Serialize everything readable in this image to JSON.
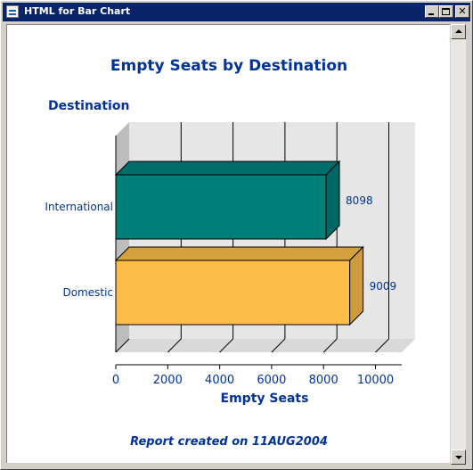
{
  "window": {
    "title": "HTML for Bar Chart",
    "minimize_icon": "minimize-icon",
    "maximize_icon": "maximize-icon",
    "close_glyph": "✕"
  },
  "page": {
    "chart_title": "Empty Seats by Destination",
    "category_axis_label": "Destination",
    "value_axis_label": "Empty Seats",
    "footnote": "Report created on 11AUG2004"
  },
  "chart_data": {
    "type": "bar",
    "orientation": "horizontal",
    "style": "3d",
    "title": "Empty Seats by Destination",
    "xlabel": "Empty Seats",
    "ylabel": "Destination",
    "categories": [
      "International",
      "Domestic"
    ],
    "values": [
      8098,
      9009
    ],
    "data_labels": [
      "8098",
      "9009"
    ],
    "colors": [
      "#007f7a",
      "#fbbd48"
    ],
    "xlim": [
      0,
      11000
    ],
    "xticks": [
      0,
      2000,
      4000,
      6000,
      8000,
      10000
    ],
    "xtick_labels": [
      "0",
      "2000",
      "4000",
      "6000",
      "8000",
      "10000"
    ],
    "grid": true,
    "legend": "none"
  }
}
